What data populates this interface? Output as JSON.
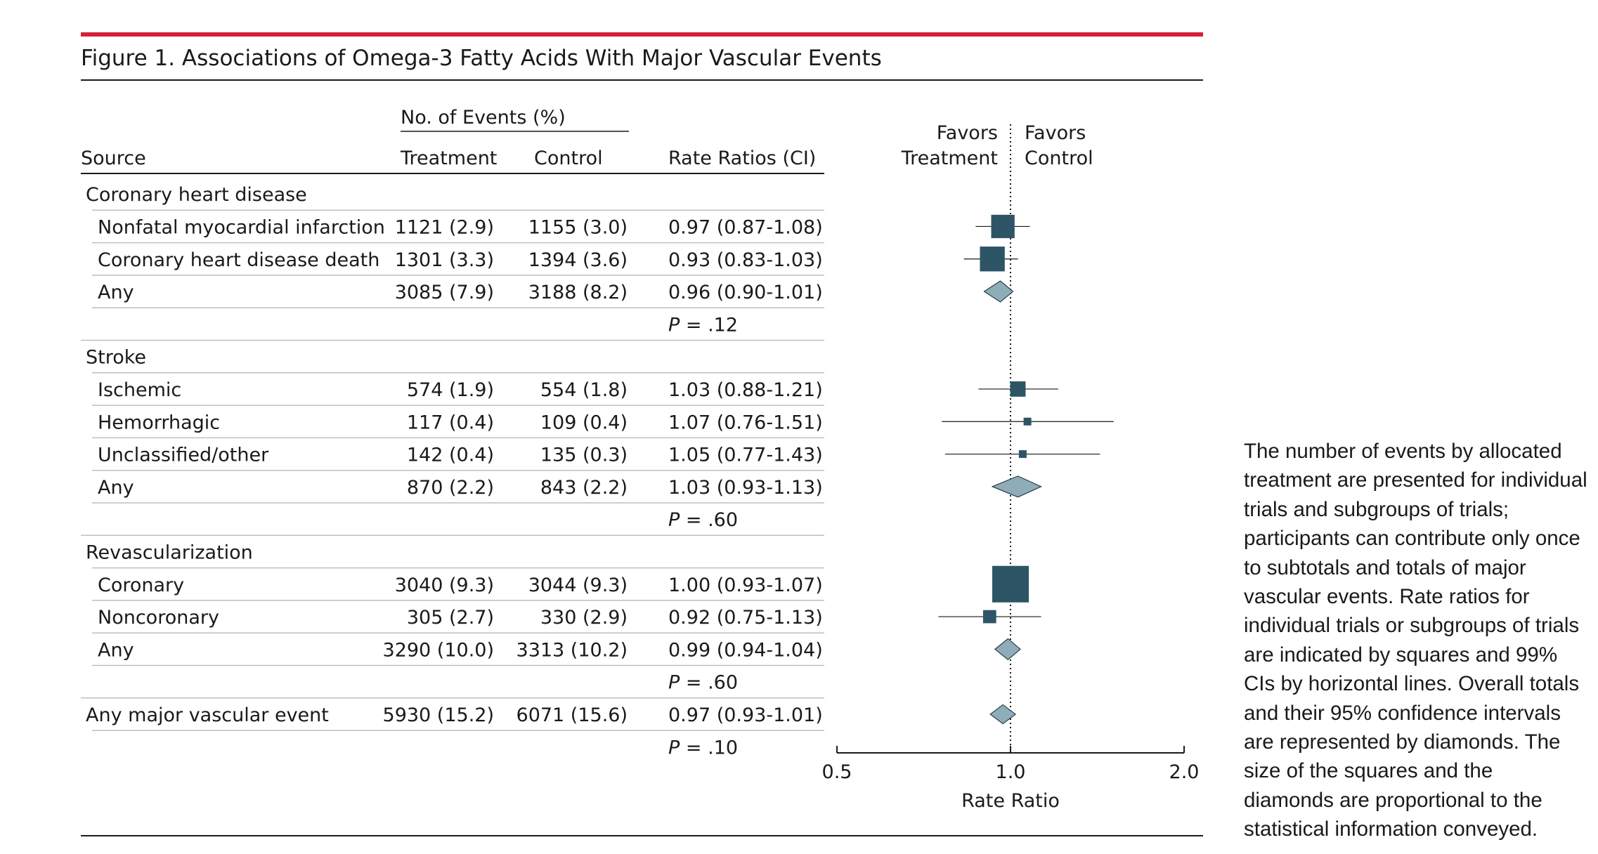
{
  "figure": {
    "title": "Figure 1. Associations of Omega-3 Fatty Acids With Major Vascular Events",
    "accent_color": "#d6203b",
    "marker_color": "#2e5566",
    "diamond_color": "#8eadb9"
  },
  "table": {
    "events_header": "No. of Events (%)",
    "columns": [
      "Source",
      "Treatment",
      "Control",
      "Rate Ratios (CI)"
    ],
    "favors_left": [
      "Favors",
      "Treatment"
    ],
    "favors_right": [
      "Favors",
      "Control"
    ]
  },
  "note": "The number of events by allocated treatment are presented for individual trials and subgroups of trials; participants can contribute only once to subtotals and totals of major vascular events. Rate ratios for individual trials or subgroups of trials are indicated by squares and 99% CIs by horizontal lines. Overall totals and their 95% confidence intervals are represented by diamonds. The size of the squares and the diamonds are proportional to the statistical information conveyed.",
  "chart_data": {
    "type": "forest",
    "xlabel": "Rate Ratio",
    "xscale": "log",
    "xlim": [
      0.5,
      2.0
    ],
    "xticks": [
      "0.5",
      "1.0",
      "2.0"
    ],
    "reference_line": 1.0,
    "rows": [
      {
        "kind": "group",
        "label": "Coronary heart disease"
      },
      {
        "kind": "item",
        "label": "Nonfatal myocardial infarction",
        "treatment": "1121 (2.9)",
        "control": "1155 (3.0)",
        "rr_text": "0.97 (0.87-1.08)",
        "rr": 0.97,
        "lo": 0.87,
        "hi": 1.08,
        "marker": "square",
        "weight": 0.64
      },
      {
        "kind": "item",
        "label": "Coronary heart disease death",
        "treatment": "1301 (3.3)",
        "control": "1394 (3.6)",
        "rr_text": "0.93 (0.83-1.03)",
        "rr": 0.93,
        "lo": 0.83,
        "hi": 1.03,
        "marker": "square",
        "weight": 0.68
      },
      {
        "kind": "item",
        "label": "Any",
        "treatment": "3085 (7.9)",
        "control": "3188 (8.2)",
        "rr_text": "0.96 (0.90-1.01)",
        "rr": 0.96,
        "lo": 0.9,
        "hi": 1.01,
        "marker": "diamond",
        "weight": 0.6
      },
      {
        "kind": "p",
        "p": ".12"
      },
      {
        "kind": "group",
        "label": "Stroke"
      },
      {
        "kind": "item",
        "label": "Ischemic",
        "treatment": "574 (1.9)",
        "control": "554 (1.8)",
        "rr_text": "1.03 (0.88-1.21)",
        "rr": 1.03,
        "lo": 0.88,
        "hi": 1.21,
        "marker": "square",
        "weight": 0.42
      },
      {
        "kind": "item",
        "label": "Hemorrhagic",
        "treatment": "117 (0.4)",
        "control": "109 (0.4)",
        "rr_text": "1.07 (0.76-1.51)",
        "rr": 1.07,
        "lo": 0.76,
        "hi": 1.51,
        "marker": "square",
        "weight": 0.2
      },
      {
        "kind": "item",
        "label": "Unclassified/other",
        "treatment": "142 (0.4)",
        "control": "135 (0.3)",
        "rr_text": "1.05 (0.77-1.43)",
        "rr": 1.05,
        "lo": 0.77,
        "hi": 1.43,
        "marker": "square",
        "weight": 0.2
      },
      {
        "kind": "item",
        "label": "Any",
        "treatment": "870 (2.2)",
        "control": "843 (2.2)",
        "rr_text": "1.03 (0.93-1.13)",
        "rr": 1.03,
        "lo": 0.93,
        "hi": 1.13,
        "marker": "diamond",
        "weight": 0.6
      },
      {
        "kind": "p",
        "p": ".60"
      },
      {
        "kind": "group",
        "label": "Revascularization"
      },
      {
        "kind": "item",
        "label": "Coronary",
        "treatment": "3040 (9.3)",
        "control": "3044 (9.3)",
        "rr_text": "1.00 (0.93-1.07)",
        "rr": 1.0,
        "lo": 0.93,
        "hi": 1.07,
        "marker": "square",
        "weight": 1.0
      },
      {
        "kind": "item",
        "label": "Noncoronary",
        "treatment": "305 (2.7)",
        "control": "330 (2.9)",
        "rr_text": "0.92 (0.75-1.13)",
        "rr": 0.92,
        "lo": 0.75,
        "hi": 1.13,
        "marker": "square",
        "weight": 0.36
      },
      {
        "kind": "item",
        "label": "Any",
        "treatment": "3290 (10.0)",
        "control": "3313 (10.2)",
        "rr_text": "0.99 (0.94-1.04)",
        "rr": 0.99,
        "lo": 0.94,
        "hi": 1.04,
        "marker": "diamond",
        "weight": 0.6
      },
      {
        "kind": "p",
        "p": ".60"
      },
      {
        "kind": "total",
        "label": "Any major vascular event",
        "treatment": "5930 (15.2)",
        "control": "6071 (15.6)",
        "rr_text": "0.97 (0.93-1.01)",
        "rr": 0.97,
        "lo": 0.93,
        "hi": 1.01,
        "marker": "diamond",
        "weight": 0.5
      },
      {
        "kind": "p",
        "p": ".10"
      }
    ]
  }
}
